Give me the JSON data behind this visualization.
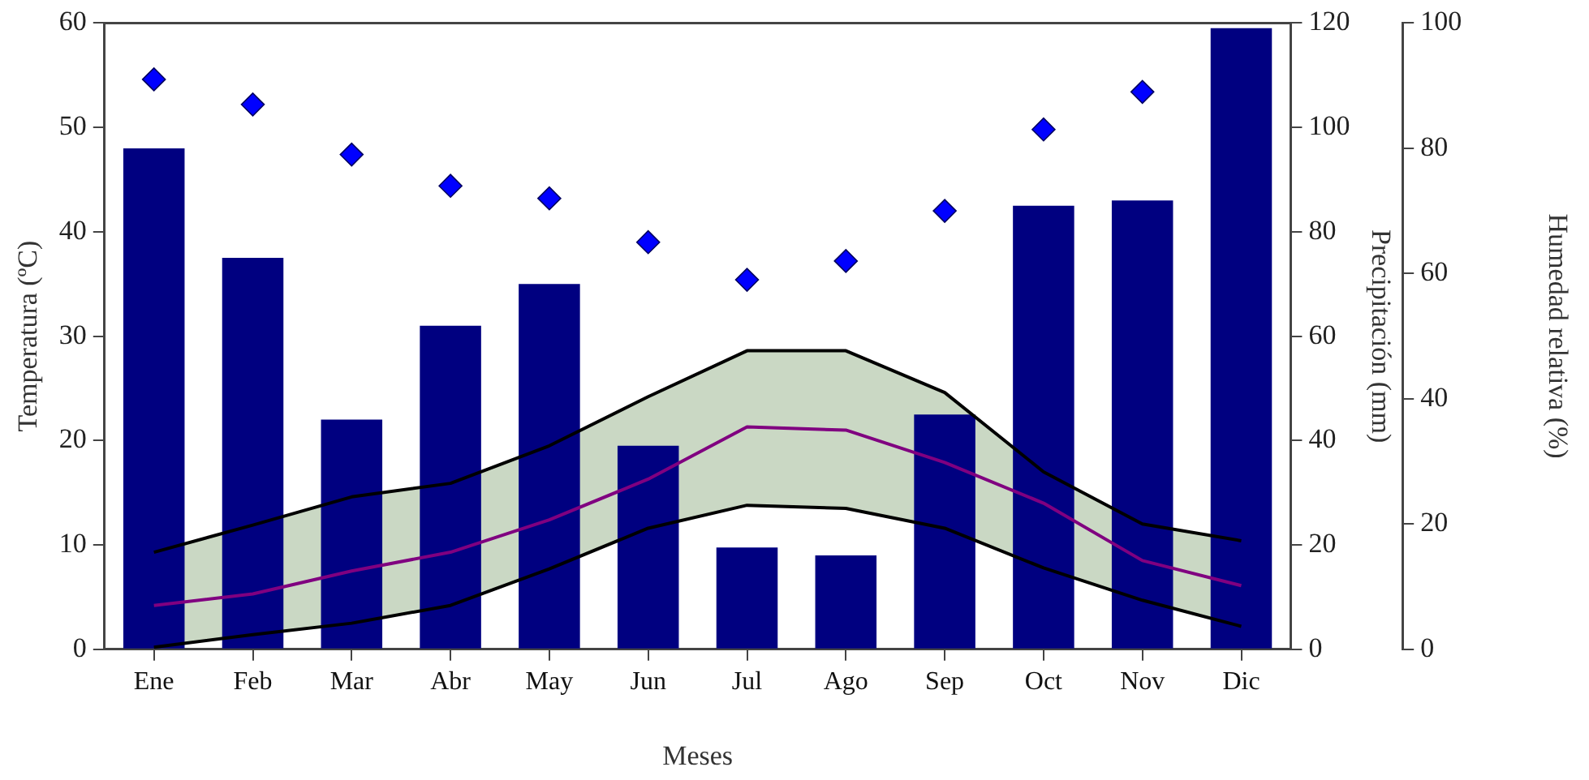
{
  "chart_data": {
    "type": "bar",
    "xlabel": "Meses",
    "ylabel": "Temperatura (ºC)",
    "y2label": "Precipitación (mm)",
    "y3label": "Humedad relativa (%)",
    "categories": [
      "Ene",
      "Feb",
      "Mar",
      "Abr",
      "May",
      "Jun",
      "Jul",
      "Ago",
      "Sep",
      "Oct",
      "Nov",
      "Dic"
    ],
    "series": [
      {
        "type": "line",
        "color": "#800080",
        "axis": "y",
        "values": [
          4.2,
          5.3,
          7.5,
          9.3,
          12.4,
          16.3,
          21.3,
          21,
          17.9,
          14,
          8.5,
          6.1
        ],
        "lower": [
          0.2,
          1.4,
          2.5,
          4.2,
          7.7,
          11.6,
          13.8,
          13.5,
          11.6,
          7.8,
          4.7,
          2.2
        ],
        "upper": [
          9.3,
          11.9,
          14.6,
          15.9,
          19.5,
          24.2,
          28.6,
          28.6,
          24.6,
          17,
          12,
          10.4
        ]
      },
      {
        "type": "line",
        "color": "#000000",
        "axis": "y",
        "values": [
          9.3,
          11.9,
          14.6,
          15.9,
          19.5,
          24.2,
          28.6,
          28.6,
          24.6,
          17,
          12,
          10.4
        ]
      },
      {
        "type": "line",
        "color": "#000000",
        "axis": "y",
        "values": [
          0.2,
          1.4,
          2.5,
          4.2,
          7.7,
          11.6,
          13.8,
          13.5,
          11.6,
          7.8,
          4.7,
          2.2
        ]
      },
      {
        "color": "#000080",
        "axis": "y2",
        "values": [
          96,
          75,
          44,
          62,
          70,
          39,
          19.5,
          18,
          45,
          85,
          86,
          119
        ]
      },
      {
        "type": "scatter",
        "color": "#0000ff",
        "axis": "y3",
        "marker": "diamond",
        "values": [
          91,
          87,
          79,
          74,
          72,
          65,
          59,
          62,
          70,
          83,
          89,
          null
        ]
      }
    ],
    "ylim": [
      0,
      60
    ],
    "yticks": [
      0,
      10,
      20,
      30,
      40,
      50,
      60
    ],
    "y2lim": [
      0,
      120
    ],
    "y2ticks": [
      0,
      20,
      40,
      60,
      80,
      100,
      120
    ],
    "y3lim": [
      0,
      100
    ],
    "y3ticks": [
      0,
      20,
      40,
      60,
      80,
      100
    ],
    "grid": false,
    "legend": false
  }
}
